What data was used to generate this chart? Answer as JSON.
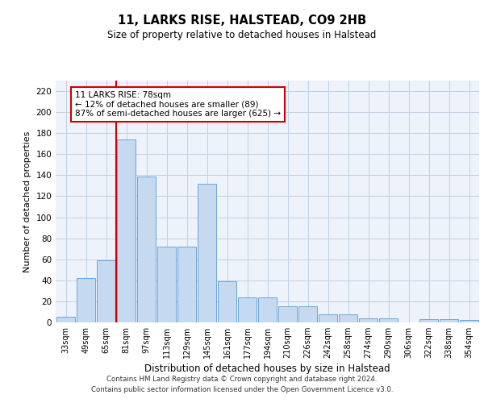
{
  "title": "11, LARKS RISE, HALSTEAD, CO9 2HB",
  "subtitle": "Size of property relative to detached houses in Halstead",
  "xlabel": "Distribution of detached houses by size in Halstead",
  "ylabel": "Number of detached properties",
  "categories": [
    "33sqm",
    "49sqm",
    "65sqm",
    "81sqm",
    "97sqm",
    "113sqm",
    "129sqm",
    "145sqm",
    "161sqm",
    "177sqm",
    "194sqm",
    "210sqm",
    "226sqm",
    "242sqm",
    "258sqm",
    "274sqm",
    "290sqm",
    "306sqm",
    "322sqm",
    "338sqm",
    "354sqm"
  ],
  "values": [
    5,
    42,
    59,
    174,
    139,
    72,
    72,
    132,
    39,
    24,
    24,
    15,
    15,
    8,
    8,
    4,
    4,
    0,
    3,
    3,
    2
  ],
  "bar_color": "#c5d9f0",
  "bar_edge_color": "#5b9bd5",
  "property_line_color": "#cc0000",
  "annotation_text": "11 LARKS RISE: 78sqm\n← 12% of detached houses are smaller (89)\n87% of semi-detached houses are larger (625) →",
  "annotation_box_color": "#ffffff",
  "annotation_box_edge_color": "#cc0000",
  "ylim_max": 230,
  "yticks": [
    0,
    20,
    40,
    60,
    80,
    100,
    120,
    140,
    160,
    180,
    200,
    220
  ],
  "background_color": "#eef3fb",
  "grid_color": "#c0cfe3",
  "footer_line1": "Contains HM Land Registry data © Crown copyright and database right 2024.",
  "footer_line2": "Contains public sector information licensed under the Open Government Licence v3.0."
}
